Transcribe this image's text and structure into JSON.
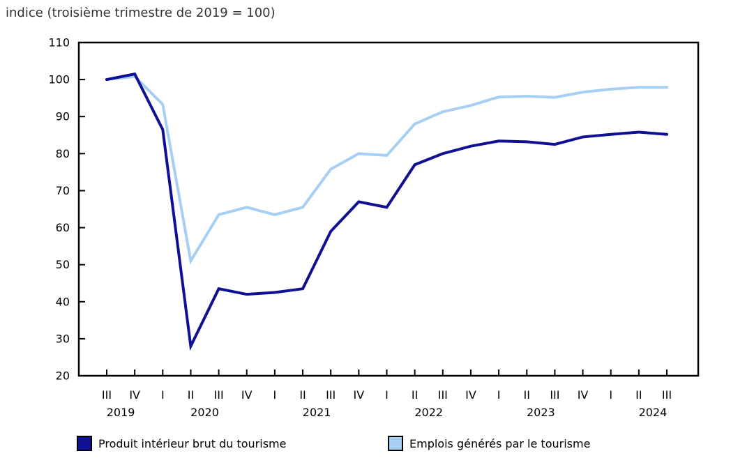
{
  "title": "indice (troisième trimestre de 2019 = 100)",
  "legend": {
    "items": [
      {
        "label": "Produit intérieur brut du tourisme",
        "color": "#101095"
      },
      {
        "label": "Emplois générés par le tourisme",
        "color": "#a6cff3"
      }
    ]
  },
  "colors": {
    "navy": "#101095",
    "light_blue": "#a6cff3",
    "axis": "#000000",
    "title_text": "#333333"
  },
  "chart_data": {
    "type": "line",
    "title": "indice (troisième trimestre de 2019 = 100)",
    "xlabel": "",
    "ylabel": "indice (troisième trimestre de 2019 = 100)",
    "ylim": [
      20,
      110
    ],
    "y_ticks": [
      20,
      30,
      40,
      50,
      60,
      70,
      80,
      90,
      100,
      110
    ],
    "grid": false,
    "legend_position": "bottom",
    "x_quarter_labels": [
      "III",
      "IV",
      "I",
      "II",
      "III",
      "IV",
      "I",
      "II",
      "III",
      "IV",
      "I",
      "II",
      "III",
      "IV",
      "I",
      "II",
      "III",
      "IV",
      "I",
      "II",
      "III"
    ],
    "year_labels": [
      {
        "label": "2019",
        "index": 0.5
      },
      {
        "label": "2020",
        "index": 3.5
      },
      {
        "label": "2021",
        "index": 7.5
      },
      {
        "label": "2022",
        "index": 11.5
      },
      {
        "label": "2023",
        "index": 15.5
      },
      {
        "label": "2024",
        "index": 19.5
      }
    ],
    "categories": [
      "2019 III",
      "2019 IV",
      "2020 I",
      "2020 II",
      "2020 III",
      "2020 IV",
      "2021 I",
      "2021 II",
      "2021 III",
      "2021 IV",
      "2022 I",
      "2022 II",
      "2022 III",
      "2022 IV",
      "2023 I",
      "2023 II",
      "2023 III",
      "2023 IV",
      "2024 I",
      "2024 II",
      "2024 III"
    ],
    "series": [
      {
        "name": "Produit intérieur brut du tourisme",
        "color": "#101095",
        "values": [
          100,
          101.5,
          86.5,
          28,
          43.5,
          42,
          42.5,
          43.5,
          59,
          67,
          65.5,
          77,
          80,
          82,
          83.4,
          83.2,
          82.5,
          84.5,
          85.2,
          85.8,
          85.2
        ]
      },
      {
        "name": "Emplois générés par le tourisme",
        "color": "#a6cff3",
        "values": [
          100,
          100.8,
          93.3,
          51,
          63.5,
          65.5,
          63.5,
          65.5,
          75.8,
          80,
          79.5,
          88,
          91.3,
          93,
          95.3,
          95.5,
          95.2,
          96.6,
          97.4,
          97.9,
          97.9
        ]
      }
    ]
  }
}
